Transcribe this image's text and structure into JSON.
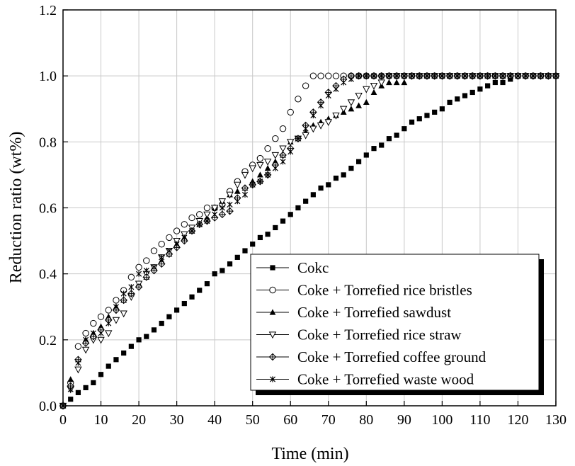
{
  "chart_data": {
    "type": "scatter",
    "title": "",
    "xlabel": "Time (min)",
    "ylabel": "Reduction ratio (wt%)",
    "xlim": [
      0,
      130
    ],
    "ylim": [
      0.0,
      1.2
    ],
    "x_ticks": [
      "0",
      "10",
      "20",
      "30",
      "40",
      "50",
      "60",
      "70",
      "80",
      "90",
      "100",
      "110",
      "120",
      "130"
    ],
    "y_ticks": [
      "0.0",
      "0.2",
      "0.4",
      "0.6",
      "0.8",
      "1.0",
      "1.2"
    ],
    "grid": true,
    "legend_position": "bottom-right",
    "series": [
      {
        "name": "Cokc",
        "marker": "filled-square",
        "x": [
          0,
          2,
          4,
          6,
          8,
          10,
          12,
          14,
          16,
          18,
          20,
          22,
          24,
          26,
          28,
          30,
          32,
          34,
          36,
          38,
          40,
          42,
          44,
          46,
          48,
          50,
          52,
          54,
          56,
          58,
          60,
          62,
          64,
          66,
          68,
          70,
          72,
          74,
          76,
          78,
          80,
          82,
          84,
          86,
          88,
          90,
          92,
          94,
          96,
          98,
          100,
          102,
          104,
          106,
          108,
          110,
          112,
          114,
          116,
          118,
          120,
          122,
          124,
          126,
          128,
          130
        ],
        "y": [
          0.0,
          0.02,
          0.04,
          0.055,
          0.07,
          0.095,
          0.12,
          0.14,
          0.16,
          0.18,
          0.2,
          0.21,
          0.23,
          0.25,
          0.27,
          0.29,
          0.31,
          0.33,
          0.35,
          0.37,
          0.4,
          0.41,
          0.43,
          0.45,
          0.47,
          0.49,
          0.51,
          0.52,
          0.54,
          0.56,
          0.58,
          0.6,
          0.62,
          0.64,
          0.66,
          0.67,
          0.69,
          0.7,
          0.72,
          0.74,
          0.76,
          0.78,
          0.79,
          0.81,
          0.82,
          0.84,
          0.86,
          0.87,
          0.88,
          0.89,
          0.9,
          0.92,
          0.93,
          0.94,
          0.95,
          0.96,
          0.97,
          0.98,
          0.98,
          0.99,
          1.0,
          1.0,
          1.0,
          1.0,
          1.0,
          1.0
        ]
      },
      {
        "name": "Coke + Torrefied rice bristles",
        "marker": "open-circle",
        "x": [
          0,
          2,
          4,
          6,
          8,
          10,
          12,
          14,
          16,
          18,
          20,
          22,
          24,
          26,
          28,
          30,
          32,
          34,
          36,
          38,
          40,
          42,
          44,
          46,
          48,
          50,
          52,
          54,
          56,
          58,
          60,
          62,
          64,
          66,
          68,
          70,
          72,
          74,
          76,
          78,
          80,
          82,
          84,
          86,
          88,
          90,
          92,
          94,
          96,
          98,
          100,
          102,
          104,
          106,
          108,
          110,
          112,
          114,
          116,
          118,
          120,
          122,
          124,
          126,
          128,
          130
        ],
        "y": [
          0.0,
          0.07,
          0.18,
          0.22,
          0.25,
          0.27,
          0.29,
          0.32,
          0.35,
          0.39,
          0.42,
          0.44,
          0.47,
          0.49,
          0.51,
          0.53,
          0.55,
          0.57,
          0.58,
          0.6,
          0.6,
          0.61,
          0.65,
          0.68,
          0.71,
          0.73,
          0.75,
          0.78,
          0.81,
          0.84,
          0.89,
          0.93,
          0.97,
          1.0,
          1.0,
          1.0,
          1.0,
          1.0,
          1.0,
          1.0,
          1.0,
          1.0,
          1.0,
          1.0,
          1.0,
          1.0,
          1.0,
          1.0,
          1.0,
          1.0,
          1.0,
          1.0,
          1.0,
          1.0,
          1.0,
          1.0,
          1.0,
          1.0,
          1.0,
          1.0,
          1.0,
          1.0,
          1.0,
          1.0,
          1.0,
          1.0
        ]
      },
      {
        "name": "Coke + Torrefied sawdust",
        "marker": "filled-triangle-up",
        "x": [
          0,
          2,
          4,
          6,
          8,
          10,
          12,
          14,
          16,
          18,
          20,
          22,
          24,
          26,
          28,
          30,
          32,
          34,
          36,
          38,
          40,
          42,
          44,
          46,
          48,
          50,
          52,
          54,
          56,
          58,
          60,
          62,
          64,
          66,
          68,
          70,
          72,
          74,
          76,
          78,
          80,
          82,
          84,
          86,
          88,
          90,
          92,
          94,
          96,
          98,
          100,
          102,
          104,
          106,
          108,
          110,
          112,
          114,
          116,
          118,
          120,
          122,
          124,
          126,
          128,
          130
        ],
        "y": [
          0.0,
          0.08,
          0.14,
          0.2,
          0.22,
          0.24,
          0.27,
          0.3,
          0.32,
          0.34,
          0.37,
          0.39,
          0.42,
          0.44,
          0.46,
          0.49,
          0.51,
          0.53,
          0.55,
          0.57,
          0.6,
          0.62,
          0.64,
          0.65,
          0.66,
          0.68,
          0.7,
          0.72,
          0.74,
          0.76,
          0.8,
          0.81,
          0.83,
          0.85,
          0.86,
          0.87,
          0.88,
          0.89,
          0.9,
          0.91,
          0.92,
          0.95,
          0.97,
          0.98,
          0.98,
          0.98,
          1.0,
          1.0,
          1.0,
          1.0,
          1.0,
          1.0,
          1.0,
          1.0,
          1.0,
          1.0,
          1.0,
          1.0,
          1.0,
          1.0,
          1.0,
          1.0,
          1.0,
          1.0,
          1.0,
          1.0
        ]
      },
      {
        "name": "Coke + Torrefied rice straw",
        "marker": "open-triangle-down",
        "x": [
          0,
          2,
          4,
          6,
          8,
          10,
          12,
          14,
          16,
          18,
          20,
          22,
          24,
          26,
          28,
          30,
          32,
          34,
          36,
          38,
          40,
          42,
          44,
          46,
          48,
          50,
          52,
          54,
          56,
          58,
          60,
          62,
          64,
          66,
          68,
          70,
          72,
          74,
          76,
          78,
          80,
          82,
          84,
          86,
          88,
          90,
          92,
          94,
          96,
          98,
          100,
          102,
          104,
          106,
          108,
          110,
          112,
          114,
          116,
          118,
          120,
          122,
          124,
          126,
          128,
          130
        ],
        "y": [
          0.0,
          0.05,
          0.11,
          0.17,
          0.2,
          0.2,
          0.22,
          0.26,
          0.28,
          0.33,
          0.37,
          0.4,
          0.42,
          0.45,
          0.47,
          0.5,
          0.52,
          0.54,
          0.56,
          0.58,
          0.6,
          0.62,
          0.64,
          0.67,
          0.7,
          0.72,
          0.73,
          0.74,
          0.76,
          0.78,
          0.8,
          0.81,
          0.82,
          0.84,
          0.85,
          0.86,
          0.88,
          0.9,
          0.92,
          0.94,
          0.96,
          0.97,
          0.98,
          1.0,
          1.0,
          1.0,
          1.0,
          1.0,
          1.0,
          1.0,
          1.0,
          1.0,
          1.0,
          1.0,
          1.0,
          1.0,
          1.0,
          1.0,
          1.0,
          1.0,
          1.0,
          1.0,
          1.0,
          1.0,
          1.0,
          1.0
        ]
      },
      {
        "name": "Coke + Torrefied coffee ground",
        "marker": "crossed-diamond",
        "x": [
          0,
          2,
          4,
          6,
          8,
          10,
          12,
          14,
          16,
          18,
          20,
          22,
          24,
          26,
          28,
          30,
          32,
          34,
          36,
          38,
          40,
          42,
          44,
          46,
          48,
          50,
          52,
          54,
          56,
          58,
          60,
          62,
          64,
          66,
          68,
          70,
          72,
          74,
          76,
          78,
          80,
          82,
          84,
          86,
          88,
          90,
          92,
          94,
          96,
          98,
          100,
          102,
          104,
          106,
          108,
          110,
          112,
          114,
          116,
          118,
          120,
          122,
          124,
          126,
          128,
          130
        ],
        "y": [
          0.0,
          0.06,
          0.14,
          0.19,
          0.21,
          0.23,
          0.26,
          0.29,
          0.32,
          0.34,
          0.36,
          0.39,
          0.41,
          0.43,
          0.46,
          0.48,
          0.5,
          0.53,
          0.55,
          0.56,
          0.57,
          0.58,
          0.59,
          0.63,
          0.66,
          0.67,
          0.68,
          0.7,
          0.73,
          0.76,
          0.78,
          0.81,
          0.85,
          0.89,
          0.92,
          0.95,
          0.97,
          0.99,
          1.0,
          1.0,
          1.0,
          1.0,
          1.0,
          1.0,
          1.0,
          1.0,
          1.0,
          1.0,
          1.0,
          1.0,
          1.0,
          1.0,
          1.0,
          1.0,
          1.0,
          1.0,
          1.0,
          1.0,
          1.0,
          1.0,
          1.0,
          1.0,
          1.0,
          1.0,
          1.0,
          1.0
        ]
      },
      {
        "name": "Coke + Torrefied waste wood",
        "marker": "asterisk-x",
        "x": [
          0,
          2,
          4,
          6,
          8,
          10,
          12,
          14,
          16,
          18,
          20,
          22,
          24,
          26,
          28,
          30,
          32,
          34,
          36,
          38,
          40,
          42,
          44,
          46,
          48,
          50,
          52,
          54,
          56,
          58,
          60,
          62,
          64,
          66,
          68,
          70,
          72,
          74,
          76,
          78,
          80,
          82,
          84,
          86,
          88,
          90,
          92,
          94,
          96,
          98,
          100,
          102,
          104,
          106,
          108,
          110,
          112,
          114,
          116,
          118,
          120,
          122,
          124,
          126,
          128,
          130
        ],
        "y": [
          0.0,
          0.05,
          0.13,
          0.2,
          0.22,
          0.22,
          0.25,
          0.3,
          0.34,
          0.36,
          0.4,
          0.41,
          0.42,
          0.45,
          0.47,
          0.49,
          0.51,
          0.53,
          0.55,
          0.56,
          0.58,
          0.6,
          0.61,
          0.62,
          0.64,
          0.67,
          0.68,
          0.7,
          0.72,
          0.74,
          0.77,
          0.81,
          0.84,
          0.88,
          0.91,
          0.94,
          0.96,
          0.98,
          0.99,
          1.0,
          1.0,
          1.0,
          1.0,
          1.0,
          1.0,
          1.0,
          1.0,
          1.0,
          1.0,
          1.0,
          1.0,
          1.0,
          1.0,
          1.0,
          1.0,
          1.0,
          1.0,
          1.0,
          1.0,
          1.0,
          1.0,
          1.0,
          1.0,
          1.0,
          1.0,
          1.0
        ]
      }
    ]
  }
}
